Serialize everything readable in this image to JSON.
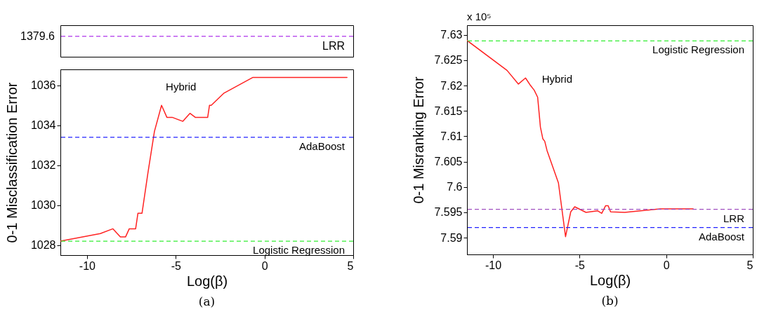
{
  "chart_data": [
    {
      "type": "other",
      "annotations": [
        "1379.6",
        "LRR"
      ],
      "ref_lines": [
        {
          "axis": "y",
          "color": "#bb55ee",
          "line_style": "dashed"
        }
      ]
    },
    {
      "type": "line",
      "title": "(a)",
      "xlabel": "Log(β)",
      "ylabel": "0-1 Misclassification Error",
      "xlim": [
        -11.5,
        5
      ],
      "xticks": [
        -10,
        -5,
        0,
        5
      ],
      "ylim": [
        1027.5,
        1036.8
      ],
      "yticks": [
        1028,
        1030,
        1032,
        1034,
        1036
      ],
      "grid": false,
      "series": [
        {
          "color": "#ff2222",
          "x": [
            -11.5,
            -9.25,
            -8.54,
            -8.12,
            -7.83,
            -7.62,
            -7.26,
            -7.13,
            -6.9,
            -6.57,
            -6.2,
            -5.8,
            -5.5,
            -5.2,
            -4.6,
            -4.2,
            -3.9,
            -3.2,
            -3.1,
            -3.0,
            -2.3,
            -0.65,
            4.65
          ],
          "values": [
            1028.2,
            1028.58,
            1028.82,
            1028.41,
            1028.41,
            1028.82,
            1028.82,
            1029.6,
            1029.6,
            1031.6,
            1033.7,
            1035.0,
            1034.4,
            1034.4,
            1034.2,
            1034.6,
            1034.4,
            1034.4,
            1035.0,
            1035.0,
            1035.6,
            1036.4,
            1036.4
          ]
        }
      ],
      "ref_lines": [
        {
          "axis": "y",
          "value": 1033.4,
          "label": "AdaBoost",
          "color": "#2222ff",
          "line_style": "dashed"
        },
        {
          "axis": "y",
          "value": 1028.2,
          "label": "Logistic Regression",
          "color": "#33ee33",
          "line_style": "dashed"
        }
      ],
      "annotations": [
        {
          "text": "Hybrid",
          "x": -5.8,
          "y": 1035.0
        }
      ]
    },
    {
      "type": "line",
      "title": "(b)",
      "xlabel": "Log(β)",
      "ylabel": "0-1 Misranking Error",
      "xlim": [
        -11.5,
        5
      ],
      "xticks": [
        -10,
        -5,
        0,
        5
      ],
      "ylim": [
        7.5867,
        7.6319
      ],
      "yticks": [
        7.59,
        7.595,
        7.6,
        7.605,
        7.61,
        7.615,
        7.62,
        7.625,
        7.63
      ],
      "grid": false,
      "series": [
        {
          "color": "#ff2222",
          "x": [
            -11.5,
            -9.19,
            -8.53,
            -8.12,
            -7.83,
            -7.62,
            -7.42,
            -7.26,
            -7.12,
            -7.01,
            -6.88,
            -6.22,
            -5.81,
            -5.51,
            -5.28,
            -4.63,
            -3.95,
            -3.72,
            -3.5,
            -3.35,
            -3.21,
            -2.39,
            -0.35,
            1.56
          ],
          "values": [
            7.6289,
            7.623,
            7.6203,
            7.6215,
            7.62,
            7.6191,
            7.6177,
            7.6118,
            7.6095,
            7.609,
            7.6072,
            7.6008,
            7.5902,
            7.5951,
            7.5961,
            7.595,
            7.5953,
            7.5948,
            7.5963,
            7.5963,
            7.5951,
            7.595,
            7.5957,
            7.5957
          ]
        }
      ],
      "ref_lines": [
        {
          "axis": "y",
          "value": 7.6288,
          "label": "Logistic Regression",
          "color": "#33ee33",
          "line_style": "dashed"
        },
        {
          "axis": "y",
          "value": 7.5956,
          "label": "LRR",
          "color": "#a050c0",
          "line_style": "dashed"
        },
        {
          "axis": "y",
          "value": 7.592,
          "label": "AdaBoost",
          "color": "#2222ff",
          "line_style": "dashed"
        }
      ],
      "annotations": [
        "x 10⁵",
        {
          "text": "Hybrid",
          "x": -7.42,
          "y": 7.6177
        }
      ]
    }
  ]
}
